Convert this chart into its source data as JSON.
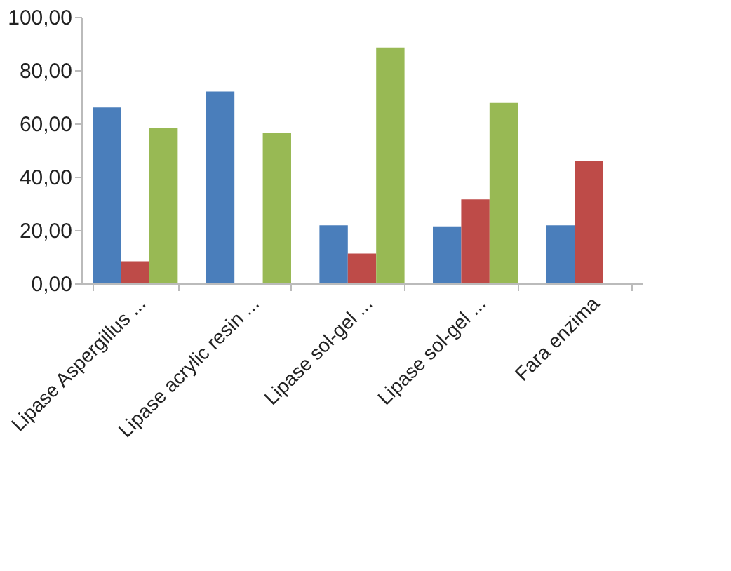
{
  "chart_data": {
    "type": "bar",
    "categories": [
      "Lipase Aspergillus ...",
      "Lipase acrylic resin ...",
      "Lipase sol-gel ...",
      "Lipase sol-gel ...",
      "Fara enzima"
    ],
    "series": [
      {
        "color": "#4a7ebb",
        "values": [
          66,
          72,
          21.8,
          21.4,
          21.8
        ]
      },
      {
        "color": "#be4b48",
        "values": [
          8.3,
          null,
          11.2,
          31.5,
          45.8
        ]
      },
      {
        "color": "#98b954",
        "values": [
          58.4,
          56.5,
          88.5,
          67.7,
          null
        ]
      }
    ],
    "ylim": [
      0,
      100
    ],
    "yticks": [
      {
        "value": 0,
        "label": "0,00"
      },
      {
        "value": 20,
        "label": "20,00"
      },
      {
        "value": 40,
        "label": "40,00"
      },
      {
        "value": 60,
        "label": "60,00"
      },
      {
        "value": 80,
        "label": "80,00"
      },
      {
        "value": 100,
        "label": "100,00"
      }
    ],
    "grid": false,
    "legend": false
  }
}
